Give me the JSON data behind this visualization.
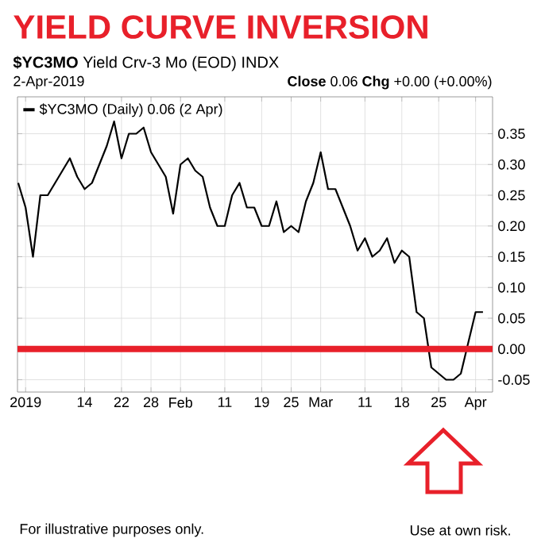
{
  "chart_data": {
    "type": "line",
    "title": "YIELD CURVE INVERSION",
    "subtitle": "**$YC3MO** Yield Crv-3 Mo (EOD) INDX",
    "annotations": [
      "2-Apr-2019",
      "**Close** 0.06  **Chg** +0.00 (+0.00%)",
      "For illustrative purposes only.",
      "Use at own risk."
    ],
    "categories": [
      null,
      "2019",
      null,
      null,
      null,
      null,
      null,
      null,
      null,
      "14",
      null,
      null,
      null,
      null,
      "22",
      null,
      null,
      null,
      "28",
      null,
      null,
      null,
      "Feb",
      null,
      null,
      null,
      null,
      null,
      "11",
      null,
      null,
      null,
      null,
      "19",
      null,
      null,
      null,
      "25",
      null,
      null,
      null,
      "Mar",
      null,
      null,
      null,
      null,
      null,
      "11",
      null,
      null,
      null,
      null,
      "18",
      null,
      null,
      null,
      null,
      "25",
      null,
      null,
      null,
      null,
      "Apr",
      null
    ],
    "series": [
      {
        "name": "$YC3MO (Daily) 0.06 (2 Apr)",
        "color": "#000000",
        "values": [
          0.27,
          0.23,
          0.15,
          0.25,
          0.25,
          0.27,
          0.29,
          0.31,
          0.28,
          0.26,
          0.27,
          0.3,
          0.33,
          0.37,
          0.31,
          0.35,
          0.35,
          0.36,
          0.32,
          0.3,
          0.28,
          0.22,
          0.3,
          0.31,
          0.29,
          0.28,
          0.23,
          0.2,
          0.2,
          0.25,
          0.27,
          0.23,
          0.23,
          0.2,
          0.2,
          0.24,
          0.19,
          0.2,
          0.19,
          0.24,
          0.27,
          0.32,
          0.26,
          0.26,
          0.23,
          0.2,
          0.16,
          0.18,
          0.15,
          0.16,
          0.18,
          0.14,
          0.16,
          0.15,
          0.06,
          0.05,
          -0.03,
          -0.04,
          -0.05,
          -0.05,
          -0.04,
          0.01,
          0.06,
          0.06
        ]
      }
    ],
    "ylim": [
      -0.07,
      0.41
    ],
    "yticks": [
      {
        "value": -0.05,
        "label": "-0.05"
      },
      {
        "value": 0,
        "label": "0.00"
      },
      {
        "value": 0.05,
        "label": "0.05"
      },
      {
        "value": 0.1,
        "label": "0.10"
      },
      {
        "value": 0.15,
        "label": "0.15"
      },
      {
        "value": 0.2,
        "label": "0.20"
      },
      {
        "value": 0.25,
        "label": "0.25"
      },
      {
        "value": 0.3,
        "label": "0.30"
      },
      {
        "value": 0.35,
        "label": "0.35"
      }
    ],
    "ref_lines": [
      {
        "axis": "y",
        "value": 0,
        "color": "#e8202a"
      }
    ],
    "grid": true,
    "legend": "top left",
    "line_style": "solid",
    "marker": "none"
  }
}
